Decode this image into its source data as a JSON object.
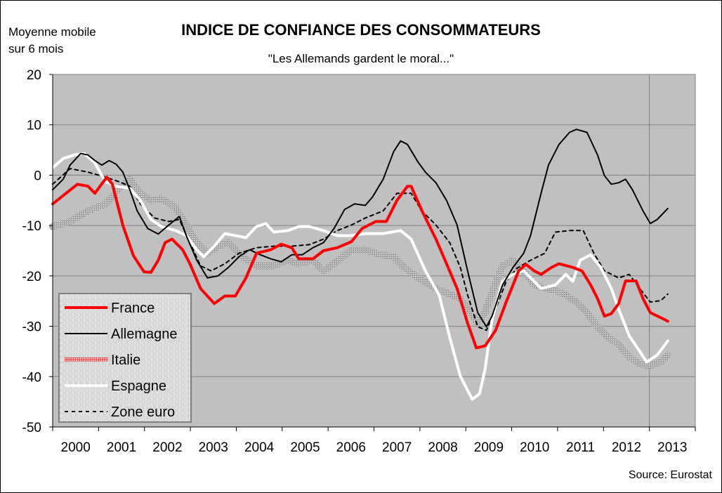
{
  "chart_data": {
    "type": "line",
    "title": "INDICE DE CONFIANCE DES CONSOMMATEURS",
    "subtitle": "\"Les Allemands gardent le moral...\"",
    "ylabel_lines": [
      "Moyenne mobile",
      "sur 6 mois"
    ],
    "xlabel": "",
    "source": "Source: Eurostat",
    "ylim": [
      -50,
      20
    ],
    "yticks": [
      20,
      10,
      0,
      -10,
      -20,
      -30,
      -40,
      -50
    ],
    "xlim": [
      2000,
      2014
    ],
    "xtick_labels": [
      "2000",
      "2001",
      "2002",
      "2003",
      "2004",
      "2005",
      "2006",
      "2007",
      "2008",
      "2009",
      "2010",
      "2011",
      "2012",
      "2013"
    ],
    "grid": "horizontal",
    "legend_position": "bottom-left",
    "series": [
      {
        "name": "France",
        "color": "#ff0000",
        "style": "thick",
        "points": [
          [
            2000.0,
            -5.7
          ],
          [
            2000.54,
            -1.8
          ],
          [
            2000.77,
            -2.2
          ],
          [
            2000.92,
            -3.6
          ],
          [
            2001.18,
            -0.4
          ],
          [
            2001.3,
            -1.8
          ],
          [
            2001.53,
            -10
          ],
          [
            2001.76,
            -16
          ],
          [
            2001.99,
            -19.2
          ],
          [
            2002.14,
            -19.3
          ],
          [
            2002.3,
            -16.9
          ],
          [
            2002.45,
            -13.4
          ],
          [
            2002.6,
            -12.7
          ],
          [
            2002.83,
            -14.8
          ],
          [
            2002.99,
            -17.6
          ],
          [
            2003.22,
            -22.5
          ],
          [
            2003.52,
            -25.5
          ],
          [
            2003.75,
            -24
          ],
          [
            2003.98,
            -24
          ],
          [
            2004.21,
            -20.4
          ],
          [
            2004.44,
            -15.5
          ],
          [
            2004.75,
            -14.8
          ],
          [
            2004.98,
            -13.7
          ],
          [
            2005.21,
            -14.4
          ],
          [
            2005.36,
            -16.6
          ],
          [
            2005.67,
            -16.6
          ],
          [
            2005.9,
            -15
          ],
          [
            2006.2,
            -14.4
          ],
          [
            2006.51,
            -13.2
          ],
          [
            2006.74,
            -10.6
          ],
          [
            2007.04,
            -9.2
          ],
          [
            2007.27,
            -9.2
          ],
          [
            2007.5,
            -5
          ],
          [
            2007.73,
            -2.2
          ],
          [
            2007.81,
            -2.2
          ],
          [
            2008.04,
            -7
          ],
          [
            2008.35,
            -12.7
          ],
          [
            2008.58,
            -17.6
          ],
          [
            2008.81,
            -22.5
          ],
          [
            2009.04,
            -29.4
          ],
          [
            2009.23,
            -34.3
          ],
          [
            2009.42,
            -33.9
          ],
          [
            2009.65,
            -30.8
          ],
          [
            2009.88,
            -25.2
          ],
          [
            2010.15,
            -19
          ],
          [
            2010.31,
            -17.7
          ],
          [
            2010.49,
            -19
          ],
          [
            2010.64,
            -19.7
          ],
          [
            2010.87,
            -18.3
          ],
          [
            2011.03,
            -17.6
          ],
          [
            2011.33,
            -18.3
          ],
          [
            2011.53,
            -19
          ],
          [
            2011.72,
            -21.8
          ],
          [
            2011.87,
            -24.5
          ],
          [
            2012.02,
            -28
          ],
          [
            2012.17,
            -27.5
          ],
          [
            2012.33,
            -25.5
          ],
          [
            2012.48,
            -21
          ],
          [
            2012.71,
            -21
          ],
          [
            2012.86,
            -24.5
          ],
          [
            2013.02,
            -27.3
          ],
          [
            2013.25,
            -28.3
          ],
          [
            2013.4,
            -29
          ]
        ]
      },
      {
        "name": "Allemagne",
        "color": "#000000",
        "style": "thin",
        "points": [
          [
            2000.0,
            -2.9
          ],
          [
            2000.23,
            -0.8
          ],
          [
            2000.38,
            2
          ],
          [
            2000.61,
            4.3
          ],
          [
            2000.77,
            4
          ],
          [
            2000.92,
            2.9
          ],
          [
            2001.07,
            2
          ],
          [
            2001.23,
            2.9
          ],
          [
            2001.38,
            2.2
          ],
          [
            2001.53,
            0.6
          ],
          [
            2001.68,
            -2.9
          ],
          [
            2001.84,
            -7.1
          ],
          [
            2002.07,
            -10.6
          ],
          [
            2002.3,
            -11.7
          ],
          [
            2002.53,
            -9.9
          ],
          [
            2002.76,
            -8.2
          ],
          [
            2002.91,
            -12
          ],
          [
            2003.14,
            -16.9
          ],
          [
            2003.37,
            -20.4
          ],
          [
            2003.6,
            -20
          ],
          [
            2003.83,
            -18.3
          ],
          [
            2004.06,
            -16.2
          ],
          [
            2004.29,
            -14.8
          ],
          [
            2004.52,
            -15.8
          ],
          [
            2004.75,
            -16.6
          ],
          [
            2004.98,
            -17.2
          ],
          [
            2005.21,
            -15.8
          ],
          [
            2005.44,
            -15.8
          ],
          [
            2005.67,
            -14.4
          ],
          [
            2005.9,
            -13.4
          ],
          [
            2006.13,
            -10.6
          ],
          [
            2006.36,
            -6.8
          ],
          [
            2006.58,
            -5.7
          ],
          [
            2006.81,
            -6
          ],
          [
            2006.97,
            -4.3
          ],
          [
            2007.2,
            -0.8
          ],
          [
            2007.43,
            4.7
          ],
          [
            2007.58,
            6.8
          ],
          [
            2007.73,
            6.1
          ],
          [
            2007.96,
            2.6
          ],
          [
            2008.12,
            0.6
          ],
          [
            2008.35,
            -1.5
          ],
          [
            2008.58,
            -5
          ],
          [
            2008.81,
            -9.9
          ],
          [
            2009.04,
            -19
          ],
          [
            2009.26,
            -27.3
          ],
          [
            2009.45,
            -30.1
          ],
          [
            2009.57,
            -28
          ],
          [
            2009.8,
            -21.8
          ],
          [
            2010.03,
            -18.3
          ],
          [
            2010.26,
            -15.5
          ],
          [
            2010.41,
            -12
          ],
          [
            2010.64,
            -3.6
          ],
          [
            2010.8,
            2
          ],
          [
            2011.03,
            6.1
          ],
          [
            2011.26,
            8.5
          ],
          [
            2011.41,
            9.1
          ],
          [
            2011.64,
            8.5
          ],
          [
            2011.87,
            4
          ],
          [
            2012.02,
            -0.1
          ],
          [
            2012.17,
            -1.8
          ],
          [
            2012.33,
            -1.5
          ],
          [
            2012.48,
            -0.8
          ],
          [
            2012.63,
            -2.9
          ],
          [
            2012.86,
            -7.1
          ],
          [
            2013.02,
            -9.6
          ],
          [
            2013.17,
            -8.8
          ],
          [
            2013.4,
            -6.6
          ]
        ]
      },
      {
        "name": "Italie",
        "color": "#9a9a9a",
        "style": "hatched",
        "points": [
          [
            2000.0,
            -10.2
          ],
          [
            2000.38,
            -9.2
          ],
          [
            2000.77,
            -7.1
          ],
          [
            2001.15,
            -5.7
          ],
          [
            2001.45,
            -2.6
          ],
          [
            2001.68,
            -0.8
          ],
          [
            2001.91,
            -3.6
          ],
          [
            2002.14,
            -5
          ],
          [
            2002.37,
            -4.7
          ],
          [
            2002.68,
            -6.4
          ],
          [
            2002.91,
            -9.9
          ],
          [
            2003.14,
            -13.4
          ],
          [
            2003.37,
            -15.5
          ],
          [
            2003.6,
            -14.1
          ],
          [
            2003.83,
            -13.4
          ],
          [
            2004.13,
            -16.2
          ],
          [
            2004.44,
            -18
          ],
          [
            2004.82,
            -18
          ],
          [
            2005.13,
            -16.9
          ],
          [
            2005.36,
            -17.6
          ],
          [
            2005.67,
            -16.9
          ],
          [
            2005.9,
            -19
          ],
          [
            2006.13,
            -17.6
          ],
          [
            2006.51,
            -14.8
          ],
          [
            2006.81,
            -14.8
          ],
          [
            2007.12,
            -15.8
          ],
          [
            2007.43,
            -16.2
          ],
          [
            2007.66,
            -18.3
          ],
          [
            2007.96,
            -20.4
          ],
          [
            2008.35,
            -22.5
          ],
          [
            2008.65,
            -23.6
          ],
          [
            2008.88,
            -24.5
          ],
          [
            2009.11,
            -27.3
          ],
          [
            2009.26,
            -29.4
          ],
          [
            2009.42,
            -27.3
          ],
          [
            2009.57,
            -23.2
          ],
          [
            2009.8,
            -18
          ],
          [
            2010.03,
            -16.9
          ],
          [
            2010.26,
            -19
          ],
          [
            2010.49,
            -21.8
          ],
          [
            2010.72,
            -22.5
          ],
          [
            2010.95,
            -22.9
          ],
          [
            2011.18,
            -23.8
          ],
          [
            2011.41,
            -25.2
          ],
          [
            2011.64,
            -27.3
          ],
          [
            2011.87,
            -30.1
          ],
          [
            2012.1,
            -32.2
          ],
          [
            2012.33,
            -33.6
          ],
          [
            2012.56,
            -36.1
          ],
          [
            2012.79,
            -37.5
          ],
          [
            2013.02,
            -37.8
          ],
          [
            2013.25,
            -37.1
          ],
          [
            2013.4,
            -35.7
          ]
        ]
      },
      {
        "name": "Espagne",
        "color": "#ffffff",
        "style": "thick",
        "points": [
          [
            2000.0,
            1.5
          ],
          [
            2000.23,
            3.3
          ],
          [
            2000.46,
            4
          ],
          [
            2000.69,
            4.3
          ],
          [
            2000.92,
            2.4
          ],
          [
            2001.15,
            -1.3
          ],
          [
            2001.38,
            -2.2
          ],
          [
            2001.68,
            -2.6
          ],
          [
            2001.91,
            -5
          ],
          [
            2002.14,
            -8.8
          ],
          [
            2002.37,
            -10.2
          ],
          [
            2002.68,
            -11
          ],
          [
            2002.91,
            -12
          ],
          [
            2003.14,
            -14.8
          ],
          [
            2003.29,
            -16.2
          ],
          [
            2003.52,
            -14.1
          ],
          [
            2003.75,
            -11.6
          ],
          [
            2003.98,
            -12
          ],
          [
            2004.21,
            -12.4
          ],
          [
            2004.44,
            -10.2
          ],
          [
            2004.64,
            -9.6
          ],
          [
            2004.82,
            -11.3
          ],
          [
            2005.13,
            -11
          ],
          [
            2005.36,
            -10.2
          ],
          [
            2005.59,
            -10.2
          ],
          [
            2005.9,
            -11
          ],
          [
            2006.2,
            -12
          ],
          [
            2006.51,
            -12
          ],
          [
            2006.81,
            -11.6
          ],
          [
            2007.2,
            -11.6
          ],
          [
            2007.58,
            -11
          ],
          [
            2007.81,
            -12.7
          ],
          [
            2008.12,
            -19
          ],
          [
            2008.42,
            -23.8
          ],
          [
            2008.65,
            -32.2
          ],
          [
            2008.88,
            -39.9
          ],
          [
            2009.14,
            -44.5
          ],
          [
            2009.3,
            -43.4
          ],
          [
            2009.42,
            -38.5
          ],
          [
            2009.57,
            -28.7
          ],
          [
            2009.8,
            -21.1
          ],
          [
            2010.03,
            -19.7
          ],
          [
            2010.26,
            -19
          ],
          [
            2010.49,
            -21.1
          ],
          [
            2010.64,
            -22.5
          ],
          [
            2010.95,
            -21.8
          ],
          [
            2011.18,
            -19.7
          ],
          [
            2011.33,
            -21.1
          ],
          [
            2011.49,
            -16.9
          ],
          [
            2011.72,
            -15.8
          ],
          [
            2011.94,
            -18.3
          ],
          [
            2012.17,
            -22.5
          ],
          [
            2012.33,
            -26.6
          ],
          [
            2012.56,
            -31.9
          ],
          [
            2012.79,
            -35
          ],
          [
            2012.94,
            -37.1
          ],
          [
            2013.17,
            -35.7
          ],
          [
            2013.4,
            -32.9
          ]
        ]
      },
      {
        "name": "Zone euro",
        "color": "#000000",
        "style": "dashed",
        "points": [
          [
            2000.0,
            -1.8
          ],
          [
            2000.38,
            1.3
          ],
          [
            2000.77,
            0.6
          ],
          [
            2001.15,
            -0.4
          ],
          [
            2001.45,
            -1.3
          ],
          [
            2001.68,
            -2.2
          ],
          [
            2001.91,
            -5.7
          ],
          [
            2002.22,
            -8.5
          ],
          [
            2002.53,
            -9.2
          ],
          [
            2002.76,
            -8.8
          ],
          [
            2002.99,
            -13.4
          ],
          [
            2003.22,
            -18
          ],
          [
            2003.45,
            -19
          ],
          [
            2003.75,
            -17.6
          ],
          [
            2004.06,
            -15.5
          ],
          [
            2004.44,
            -14.4
          ],
          [
            2004.82,
            -14.1
          ],
          [
            2005.21,
            -14.1
          ],
          [
            2005.59,
            -13.8
          ],
          [
            2005.9,
            -12.7
          ],
          [
            2006.2,
            -11
          ],
          [
            2006.51,
            -9.9
          ],
          [
            2006.81,
            -8.5
          ],
          [
            2007.2,
            -7.1
          ],
          [
            2007.5,
            -3.6
          ],
          [
            2007.81,
            -3.6
          ],
          [
            2008.04,
            -7.1
          ],
          [
            2008.35,
            -9.9
          ],
          [
            2008.65,
            -13.4
          ],
          [
            2008.88,
            -18.3
          ],
          [
            2009.04,
            -23.8
          ],
          [
            2009.26,
            -30.1
          ],
          [
            2009.45,
            -30.8
          ],
          [
            2009.65,
            -26.6
          ],
          [
            2009.88,
            -21.1
          ],
          [
            2010.11,
            -18.5
          ],
          [
            2010.41,
            -16.9
          ],
          [
            2010.72,
            -15.5
          ],
          [
            2010.95,
            -11.3
          ],
          [
            2011.26,
            -11
          ],
          [
            2011.56,
            -11
          ],
          [
            2011.79,
            -15.5
          ],
          [
            2012.02,
            -19
          ],
          [
            2012.33,
            -20.4
          ],
          [
            2012.56,
            -19.7
          ],
          [
            2012.79,
            -22.5
          ],
          [
            2013.02,
            -25.2
          ],
          [
            2013.25,
            -24.9
          ],
          [
            2013.4,
            -23.6
          ]
        ]
      }
    ]
  }
}
